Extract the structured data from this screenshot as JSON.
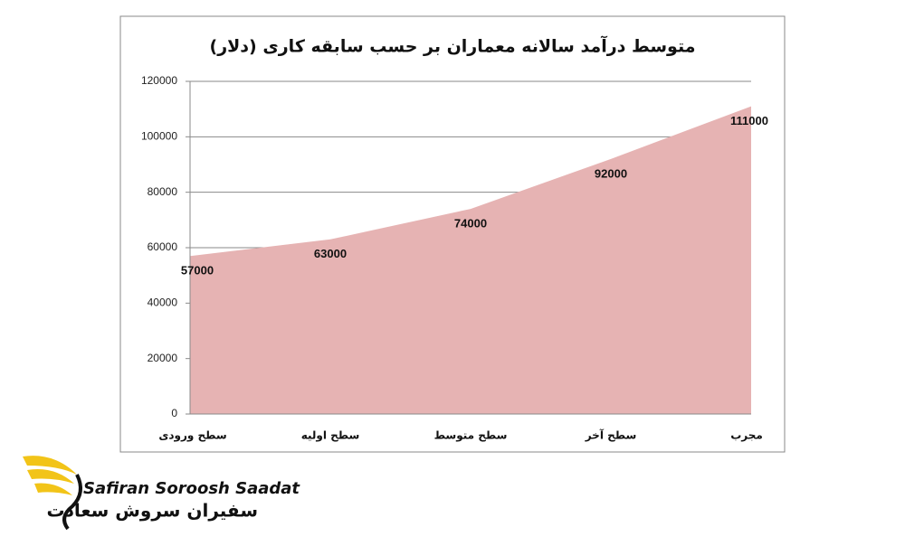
{
  "chart_data": {
    "type": "area",
    "title": "متوسط درآمد سالانه معماران بر حسب سابقه کاری (دلار)",
    "categories": [
      "سطح ورودی",
      "سطح اولیه",
      "سطح متوسط",
      "سطح آخر",
      "مجرب"
    ],
    "values": [
      57000,
      63000,
      74000,
      92000,
      111000
    ],
    "color": "#e6b3b3",
    "ylim": [
      0,
      120000
    ],
    "yticks": [
      0,
      20000,
      40000,
      60000,
      80000,
      100000,
      120000
    ],
    "grid": true
  },
  "logo": {
    "latin": "Safiran Soroosh Saadat",
    "persian": "سفیران سروش سعادت"
  }
}
